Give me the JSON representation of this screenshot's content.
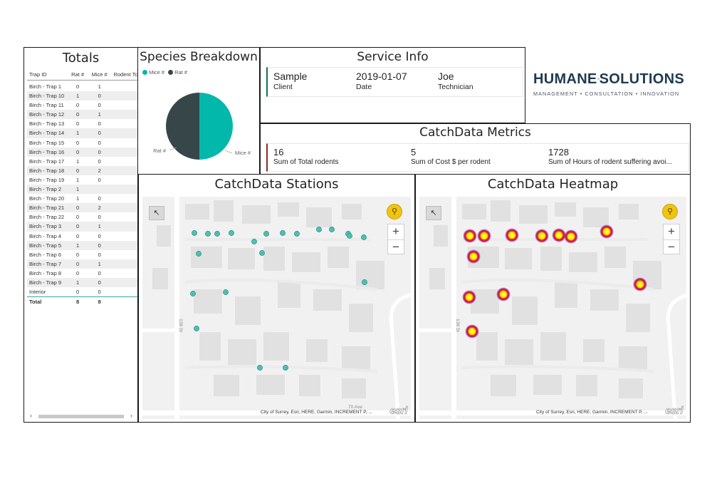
{
  "totals": {
    "title": "Totals",
    "columns": [
      "Trap ID",
      "Rat #",
      "Mice #",
      "Rodent Tc"
    ],
    "rows": [
      [
        "Birch - Trap 1",
        "0",
        "1"
      ],
      [
        "Birch - Trap 10",
        "1",
        "0"
      ],
      [
        "Birch - Trap 11",
        "0",
        "0"
      ],
      [
        "Birch - Trap 12",
        "0",
        "1"
      ],
      [
        "Birch - Trap 13",
        "0",
        "0"
      ],
      [
        "Birch - Trap 14",
        "1",
        "0"
      ],
      [
        "Birch - Trap 15",
        "0",
        "0"
      ],
      [
        "Birch - Trap 16",
        "0",
        "0"
      ],
      [
        "Birch - Trap 17",
        "1",
        "0"
      ],
      [
        "Birch - Trap 18",
        "0",
        "2"
      ],
      [
        "Birch - Trap 19",
        "1",
        "0"
      ],
      [
        "Birch - Trap 2",
        "1",
        ""
      ],
      [
        "Birch - Trap 20",
        "1",
        "0"
      ],
      [
        "Birch - Trap 21",
        "0",
        "2"
      ],
      [
        "Birch - Trap 22",
        "0",
        "0"
      ],
      [
        "Birch - Trap 3",
        "0",
        "1"
      ],
      [
        "Birch - Trap 4",
        "0",
        "0"
      ],
      [
        "Birch - Trap 5",
        "1",
        "0"
      ],
      [
        "Birch - Trap 6",
        "0",
        "0"
      ],
      [
        "Birch - Trap 7",
        "0",
        "1"
      ],
      [
        "Birch - Trap 8",
        "0",
        "0"
      ],
      [
        "Birch - Trap 9",
        "1",
        "0"
      ],
      [
        "Interior",
        "0",
        "0"
      ]
    ],
    "total_row": [
      "Total",
      "8",
      "8"
    ],
    "scroll_left": "‹",
    "scroll_right": "›"
  },
  "species": {
    "title": "Species Breakdown",
    "legend": [
      {
        "label": "Mice #",
        "color": "#01b8aa"
      },
      {
        "label": "Rat #",
        "color": "#374649"
      }
    ],
    "slice_labels": {
      "rat": "Rat #",
      "mice": "Mice #"
    },
    "chart_data": {
      "type": "pie",
      "categories": [
        "Mice #",
        "Rat #"
      ],
      "values": [
        8,
        8
      ],
      "colors": [
        "#01b8aa",
        "#374649"
      ]
    }
  },
  "service": {
    "title": "Service Info",
    "fields": [
      {
        "value": "Sample",
        "label": "Client"
      },
      {
        "value": "2019-01-07",
        "label": "Date"
      },
      {
        "value": "Joe",
        "label": "Technician"
      }
    ]
  },
  "logo": {
    "left_word": "HUMANE",
    "right_word": "SOLUTIONS",
    "tagline": "MANAGEMENT • CONSULTATION • INNOVATION"
  },
  "metrics": {
    "title": "CatchData Metrics",
    "fields": [
      {
        "value": "16",
        "label": "Sum of Total rodents"
      },
      {
        "value": "5",
        "label": "Sum of Cost $ per rodent"
      },
      {
        "value": "1728",
        "label": "Sum of Hours of rodent suffering avoi..."
      }
    ]
  },
  "stations_map": {
    "title": "CatchData Stations",
    "attribution": "City of Surrey, Esri, HERE, Garmin, INCREMENT P, ...",
    "esri": "esri",
    "street_ns": "138 St",
    "street_ew": "70 Ave",
    "zoom_in": "+",
    "zoom_out": "−",
    "point_color": "#4dbfb3"
  },
  "heatmap_map": {
    "title": "CatchData Heatmap",
    "attribution": "City of Surrey, Esri, HERE, Garmin, INCREMENT P, ...",
    "esri": "esri",
    "street_ns": "138 St",
    "zoom_in": "+",
    "zoom_out": "−"
  }
}
